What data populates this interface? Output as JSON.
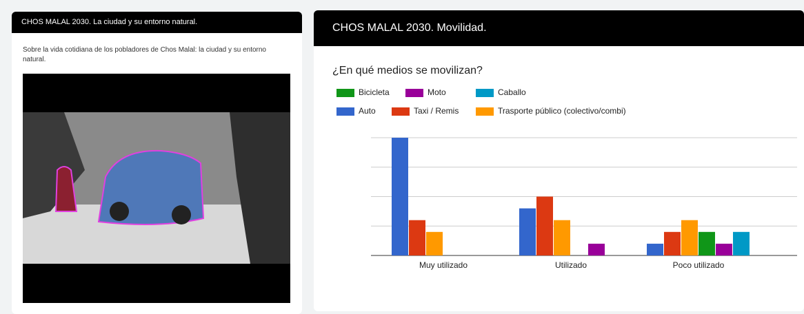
{
  "left_panel": {
    "header": "CHOS MALAL 2030. La ciudad y su entorno natural.",
    "description": "Sobre la vida cotidiana de los pobladores de Chos Malal: la ciudad y su entorno natural."
  },
  "right_panel": {
    "header": "CHOS MALAL 2030. Movilidad."
  },
  "chart_data": {
    "type": "bar",
    "title": "¿En qué medios se movilizan?",
    "categories": [
      "Muy utilizado",
      "Utilizado",
      "Poco utilizado"
    ],
    "series": [
      {
        "name": "Auto",
        "color": "#3366cc",
        "values": [
          10,
          4,
          1
        ]
      },
      {
        "name": "Taxi / Remis",
        "color": "#dc3912",
        "values": [
          3,
          5,
          2
        ]
      },
      {
        "name": "Trasporte  público (colectivo/combi)",
        "color": "#ff9900",
        "values": [
          2,
          3,
          3
        ]
      },
      {
        "name": "Bicicleta",
        "color": "#109618",
        "values": [
          0,
          0,
          2
        ]
      },
      {
        "name": "Moto",
        "color": "#990099",
        "values": [
          0,
          1,
          1
        ]
      },
      {
        "name": "Caballo",
        "color": "#0099c6",
        "values": [
          0,
          0,
          2
        ]
      }
    ],
    "ylim": [
      0,
      10
    ],
    "yticks": [
      0,
      2.5,
      5,
      7.5,
      10
    ],
    "grid": true
  }
}
